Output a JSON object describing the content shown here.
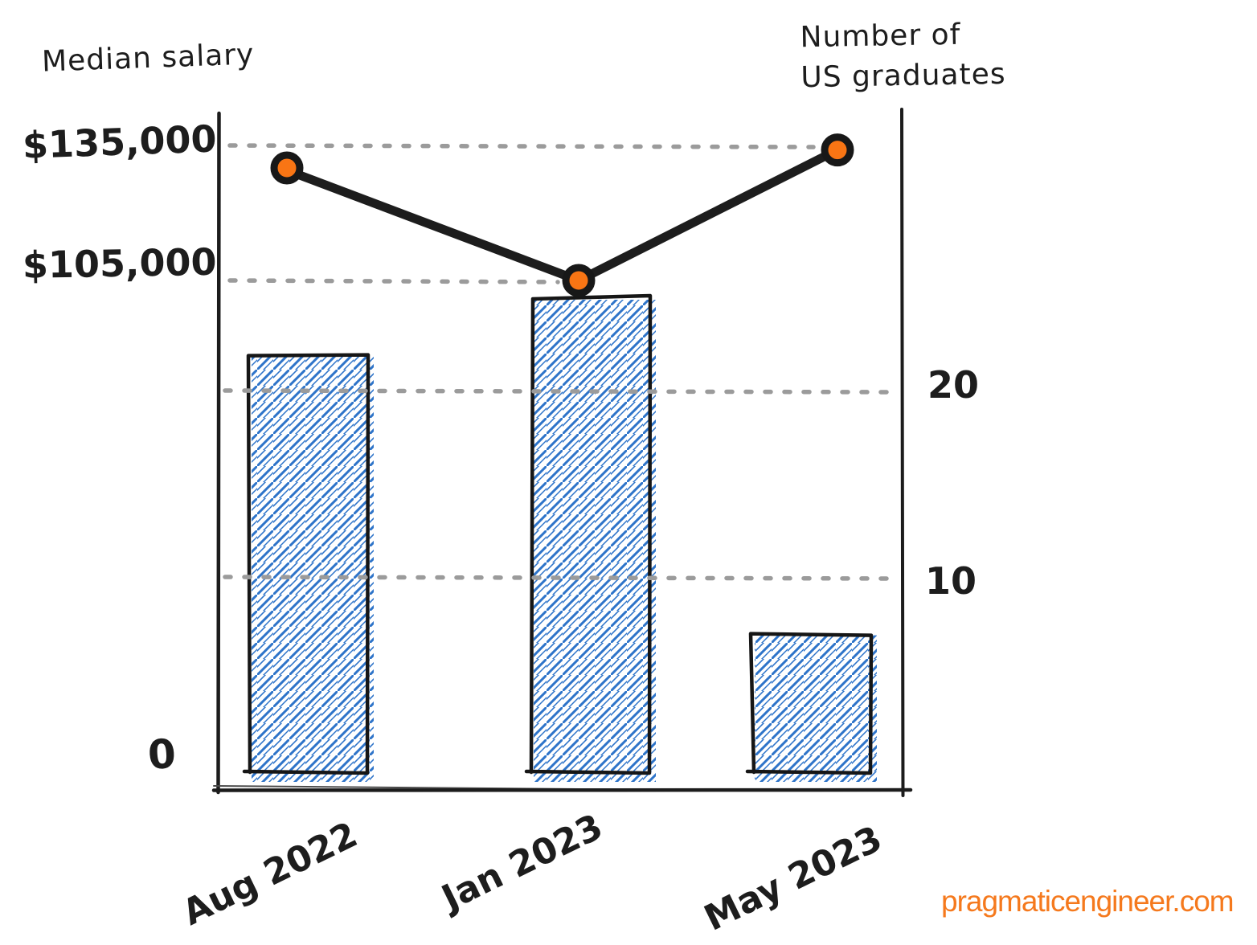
{
  "page": {
    "background": "#FFFFFF"
  },
  "brand": {
    "label": "pragmaticengineer.com",
    "color": "#F5791D"
  },
  "chart_data": {
    "type": "bar",
    "subtype": "dual-axis bar + line combo, hand-drawn sketch style",
    "categories": [
      "Aug 2022",
      "Jan 2023",
      "May 2023"
    ],
    "series": [
      {
        "name": "Median salary",
        "type": "line",
        "axis": "left",
        "values": [
          130000,
          105000,
          134000
        ],
        "point_color": "#F97514",
        "line_color": "#1d1d1d"
      },
      {
        "name": "Number of US graduates",
        "type": "bar",
        "axis": "right",
        "values": [
          22,
          25,
          7
        ],
        "hatch_color": "#2E74C9",
        "outline_color": "#161616"
      }
    ],
    "left_axis": {
      "title": "Median salary",
      "ticks": [
        "$135,000",
        "$105,000",
        "0"
      ],
      "tick_values": [
        135000,
        105000,
        0
      ]
    },
    "right_axis": {
      "title": "Number of US graduates",
      "title_lines": [
        "Number of",
        "US graduates"
      ],
      "ticks": [
        "20",
        "10"
      ],
      "tick_values": [
        20,
        10
      ]
    },
    "gridlines": {
      "style": "dotted",
      "color": "#9B9B9B",
      "at_left_values": [
        135000,
        105000
      ],
      "at_right_values": [
        20,
        10
      ]
    },
    "legend": "none",
    "axis_color": "#1c1c1c"
  }
}
